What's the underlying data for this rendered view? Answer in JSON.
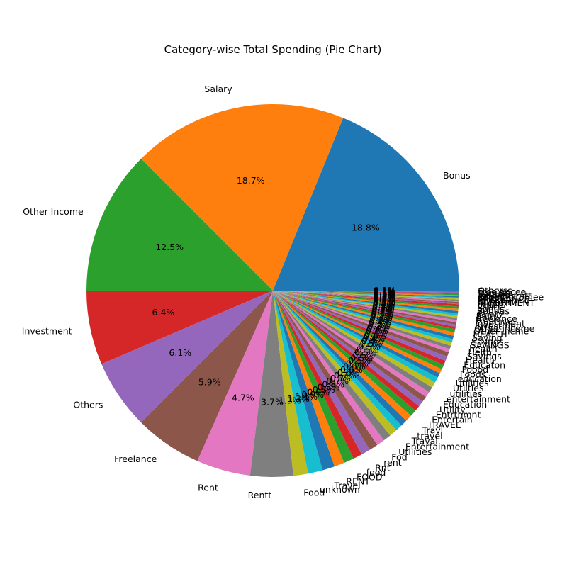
{
  "chart_data": {
    "type": "pie",
    "title": "Category-wise Total Spending (Pie Chart)",
    "start_angle_deg": 0,
    "direction": "counterclockwise",
    "label_format": "percent_1dp",
    "palette": [
      "#1f77b4",
      "#ff7f0e",
      "#2ca02c",
      "#d62728",
      "#9467bd",
      "#8c564b",
      "#e377c2",
      "#7f7f7f",
      "#bcbd22",
      "#17becf"
    ],
    "slices": [
      {
        "label": "Bonus",
        "value": 19.3
      },
      {
        "label": "Salary",
        "value": 19.1
      },
      {
        "label": "Other Income",
        "value": 12.8
      },
      {
        "label": "Investment",
        "value": 6.6
      },
      {
        "label": "Others",
        "value": 6.2
      },
      {
        "label": "Freelance",
        "value": 6.0
      },
      {
        "label": "Rent",
        "value": 4.8
      },
      {
        "label": "Rentt",
        "value": 3.8
      },
      {
        "label": "Food",
        "value": 1.3
      },
      {
        "label": "unknown",
        "value": 1.3
      },
      {
        "label": "Travel",
        "value": 1.1
      },
      {
        "label": "RENT",
        "value": 0.9
      },
      {
        "label": "FOOD",
        "value": 0.9
      },
      {
        "label": "food",
        "value": 0.8
      },
      {
        "label": "Rnt",
        "value": 0.8
      },
      {
        "label": "rent",
        "value": 0.8
      },
      {
        "label": "Fod",
        "value": 0.7
      },
      {
        "label": "Utilities",
        "value": 0.7
      },
      {
        "label": "Entertainment",
        "value": 0.7
      },
      {
        "label": "Traval",
        "value": 0.6
      },
      {
        "label": "travel",
        "value": 0.6
      },
      {
        "label": "Travl",
        "value": 0.6
      },
      {
        "label": "TRAVEL",
        "value": 0.6
      },
      {
        "label": "Entertain",
        "value": 0.5
      },
      {
        "label": "Entrtnmnt",
        "value": 0.5
      },
      {
        "label": "Utility",
        "value": 0.5
      },
      {
        "label": "Education",
        "value": 0.5
      },
      {
        "label": "entertainment",
        "value": 0.5
      },
      {
        "label": "utilities",
        "value": 0.5
      },
      {
        "label": "Utilties",
        "value": 0.5
      },
      {
        "label": "Utilities",
        "value": 0.4
      },
      {
        "label": "education",
        "value": 0.4
      },
      {
        "label": "Foods",
        "value": 0.4
      },
      {
        "label": "Foood",
        "value": 0.4
      },
      {
        "label": "Educaton",
        "value": 0.4
      },
      {
        "label": "Health",
        "value": 0.4
      },
      {
        "label": "Savings",
        "value": 0.3
      },
      {
        "label": "Helth",
        "value": 0.3
      },
      {
        "label": "health",
        "value": 0.3
      },
      {
        "label": "SAVINGS",
        "value": 0.3
      },
      {
        "label": "Savngs",
        "value": 0.3
      },
      {
        "label": "Saving",
        "value": 0.3
      },
      {
        "label": "HEALTH",
        "value": 0.3
      },
      {
        "label": "Other Incme",
        "value": 0.2
      },
      {
        "label": "Other income",
        "value": 0.2
      },
      {
        "label": "Investmnt",
        "value": 0.2
      },
      {
        "label": "investment",
        "value": 0.2
      },
      {
        "label": "Freelnce",
        "value": 0.2
      },
      {
        "label": "freelance",
        "value": 0.2
      },
      {
        "label": "Salry",
        "value": 0.2
      },
      {
        "label": "salary",
        "value": 0.2
      },
      {
        "label": "Bonous",
        "value": 0.2
      },
      {
        "label": "bonus",
        "value": 0.2
      },
      {
        "label": "Othrs",
        "value": 0.2
      },
      {
        "label": "others",
        "value": 0.1
      },
      {
        "label": "INVESTMENT",
        "value": 0.1
      },
      {
        "label": "SALARY",
        "value": 0.1
      },
      {
        "label": "BONUS",
        "value": 0.1
      },
      {
        "label": "FREELANCE",
        "value": 0.1
      },
      {
        "label": "OTHERS",
        "value": 0.1
      },
      {
        "label": "Other Incomee",
        "value": 0.1
      },
      {
        "label": "Investmentt",
        "value": 0.1
      },
      {
        "label": "Salaryy",
        "value": 0.1
      },
      {
        "label": "Bonuss",
        "value": 0.1
      },
      {
        "label": "Freelancee",
        "value": 0.1
      },
      {
        "label": "Otherss",
        "value": 0.1
      }
    ]
  }
}
